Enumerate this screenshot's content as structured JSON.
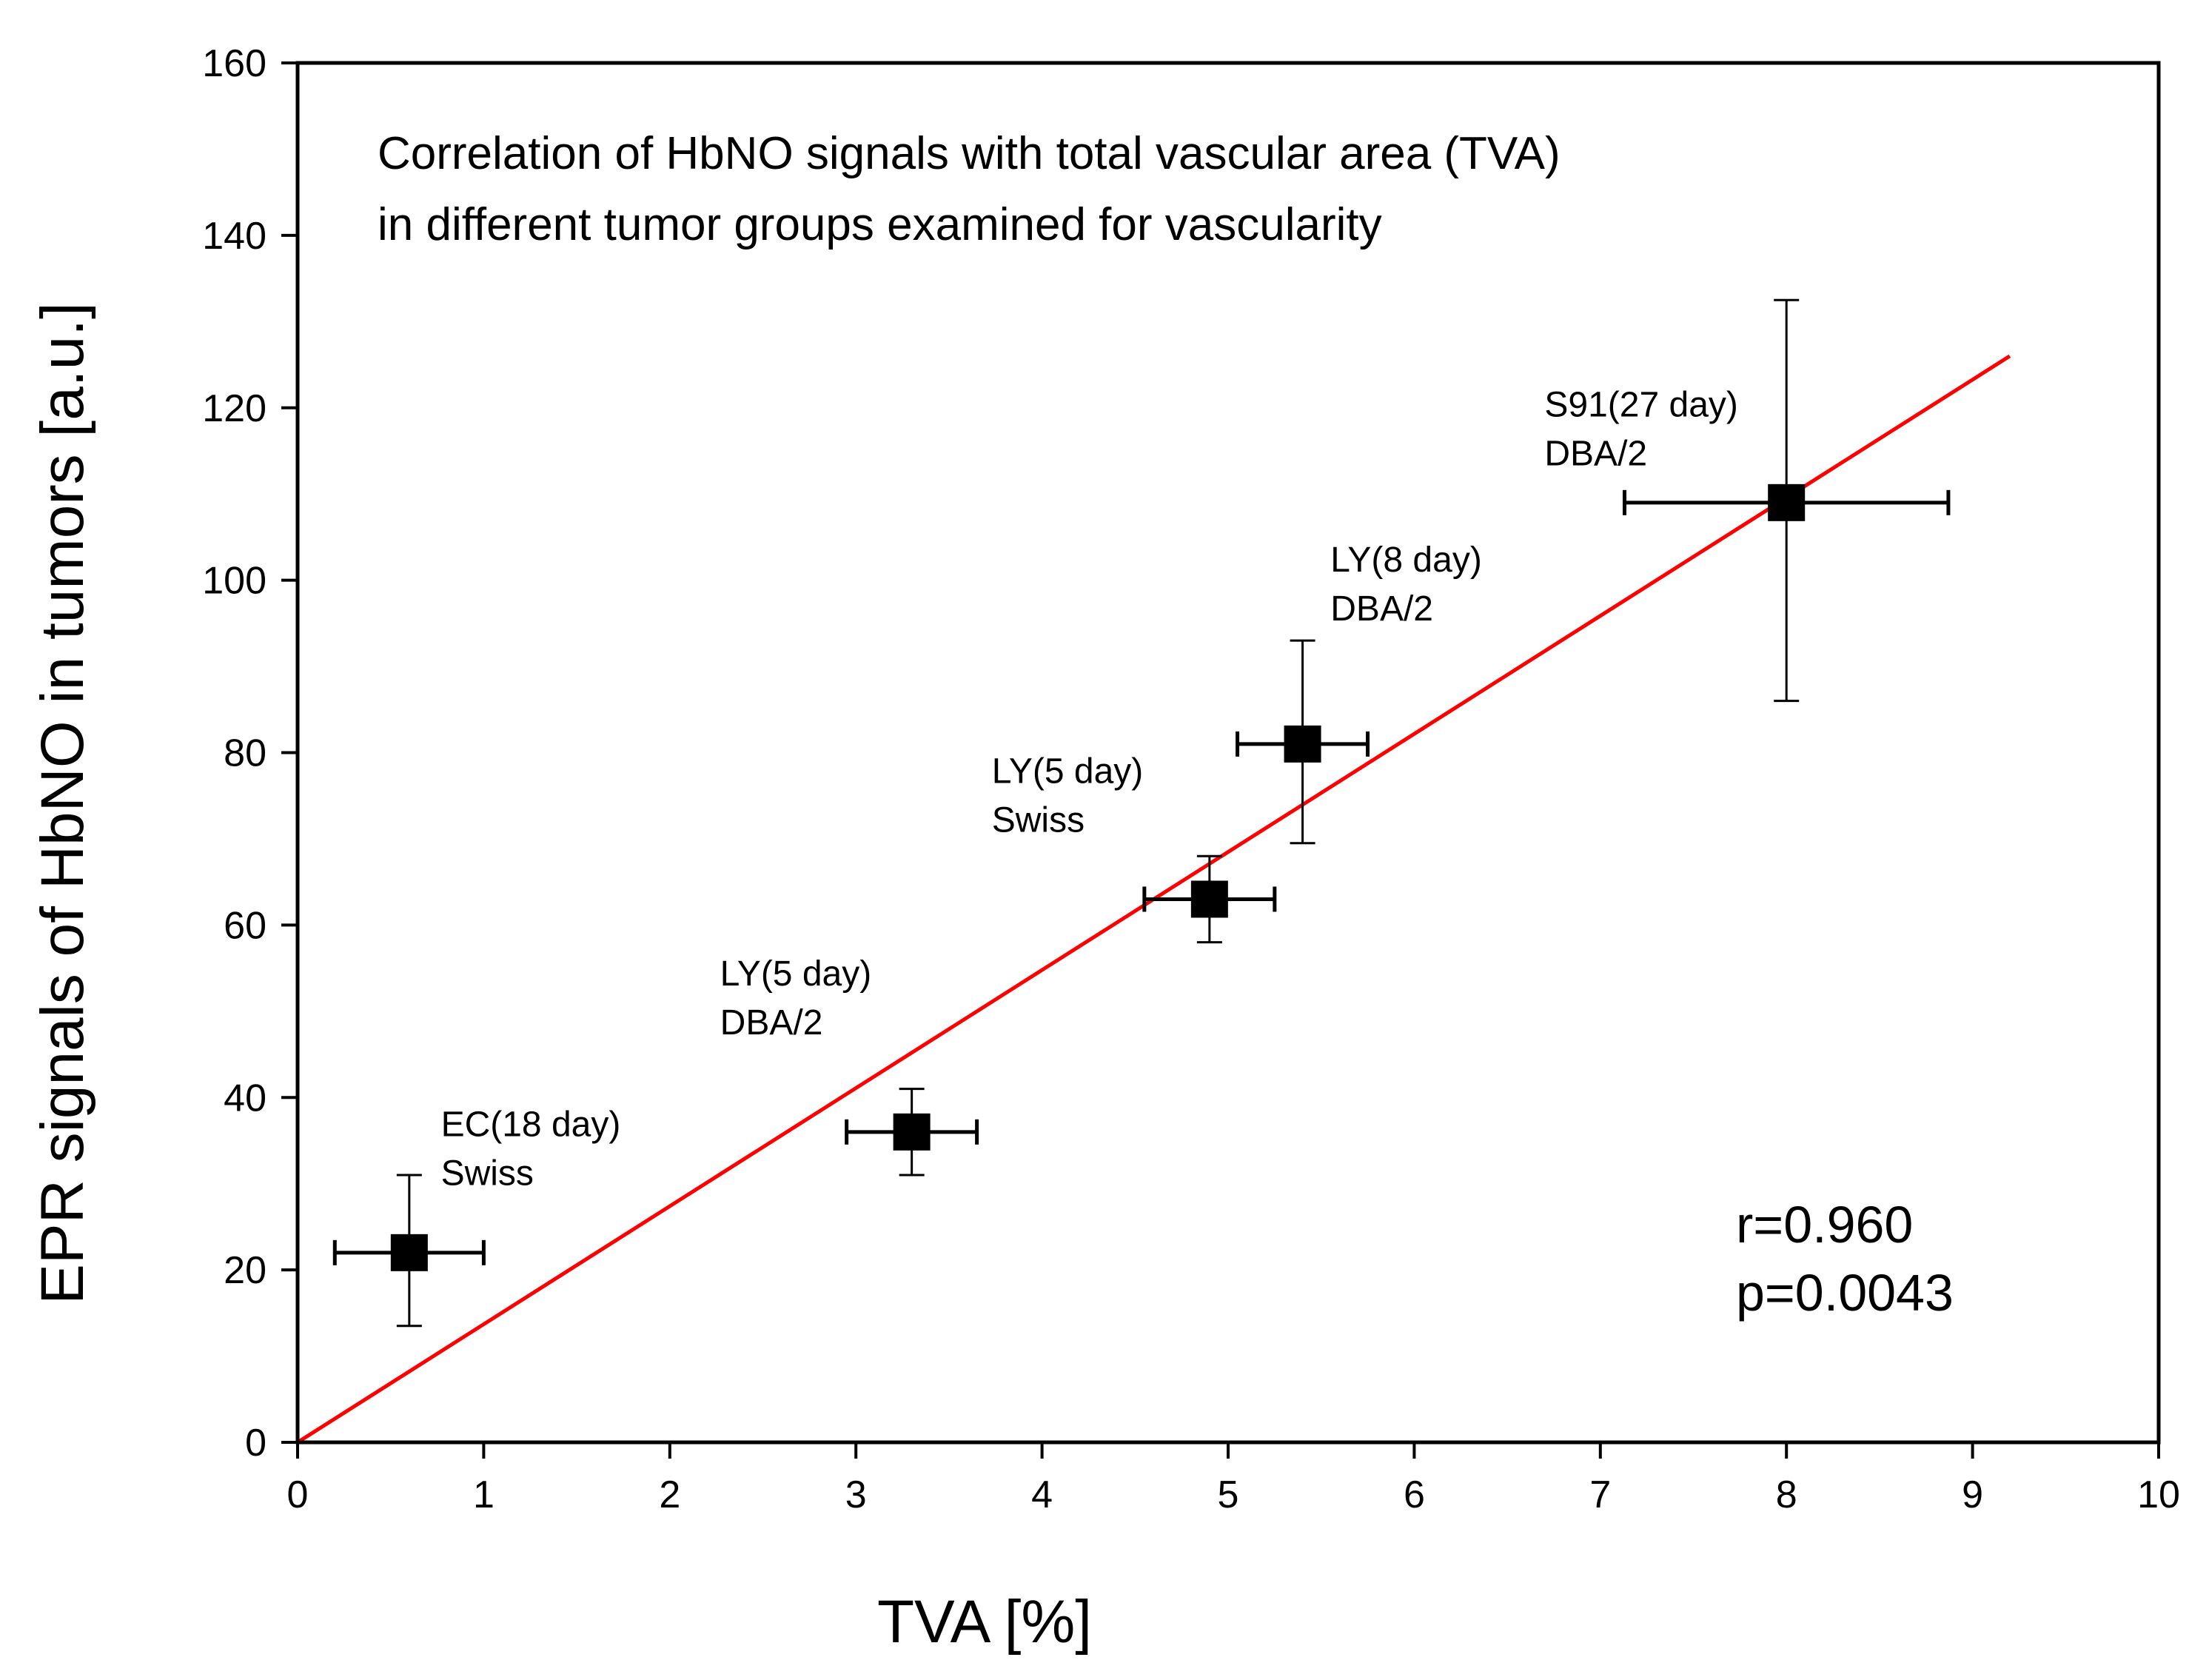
{
  "chart_data": {
    "type": "scatter",
    "title": [
      "Correlation of HbNO signals with total vascular area (TVA)",
      "in different tumor groups examined for vascularity"
    ],
    "xlabel": "TVA [%]",
    "ylabel": "EPR signals of HbNO in tumors [a.u.]",
    "xlim": [
      0,
      10
    ],
    "ylim": [
      0,
      160
    ],
    "xticks": [
      0,
      1,
      2,
      3,
      4,
      5,
      6,
      7,
      8,
      9,
      10
    ],
    "yticks": [
      0,
      20,
      40,
      60,
      80,
      100,
      120,
      140,
      160
    ],
    "grid": false,
    "points": [
      {
        "x": 0.6,
        "y": 22,
        "x_err_low": 0.2,
        "x_err_high": 1.0,
        "y_err_low": 13.5,
        "y_err_high": 31,
        "label": [
          "EC(18 day)",
          "Swiss"
        ]
      },
      {
        "x": 3.3,
        "y": 36,
        "x_err_low": 2.95,
        "x_err_high": 3.65,
        "y_err_low": 31,
        "y_err_high": 41,
        "label": [
          "LY(5 day)",
          "DBA/2"
        ]
      },
      {
        "x": 4.9,
        "y": 63,
        "x_err_low": 4.55,
        "x_err_high": 5.25,
        "y_err_low": 58,
        "y_err_high": 68,
        "label": [
          "LY(5 day)",
          "Swiss"
        ]
      },
      {
        "x": 5.4,
        "y": 81,
        "x_err_low": 5.05,
        "x_err_high": 5.75,
        "y_err_low": 69.5,
        "y_err_high": 93,
        "label": [
          "LY(8 day)",
          "DBA/2"
        ]
      },
      {
        "x": 8.0,
        "y": 109,
        "x_err_low": 7.13,
        "x_err_high": 8.87,
        "y_err_low": 86,
        "y_err_high": 132.5,
        "label": [
          "S91(27 day)",
          "DBA/2"
        ]
      }
    ],
    "fit_line": {
      "x": [
        0,
        9.2
      ],
      "y": [
        0,
        126
      ],
      "color": "#ff0000"
    },
    "marker_color": "#000000",
    "annotations": [
      "r=0.960",
      "p=0.0043"
    ]
  }
}
